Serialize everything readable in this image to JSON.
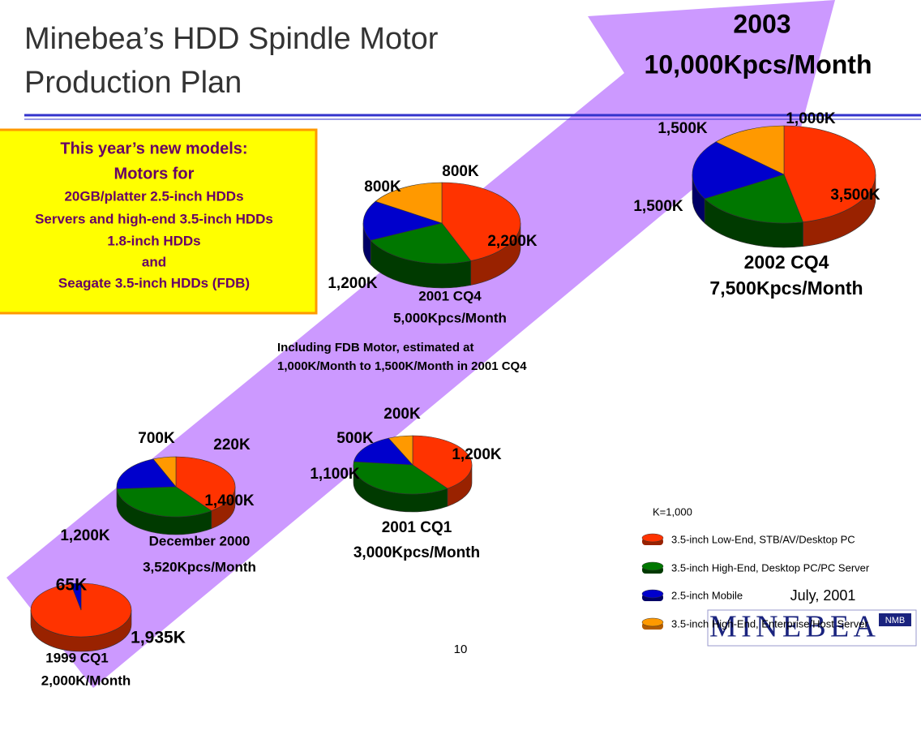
{
  "title_lines": [
    "Minebea’s HDD Spindle Motor",
    "Production Plan"
  ],
  "goal": {
    "year": "2003",
    "amount": "10,000Kpcs/Month"
  },
  "new_models": [
    "This year’s new models:",
    "Motors for",
    "20GB/platter 2.5-inch HDDs",
    "Servers and high-end 3.5-inch HDDs",
    "1.8-inch HDDs",
    "and",
    "Seagate 3.5-inch HDDs (FDB)"
  ],
  "note": [
    "Including FDB Motor, estimated at",
    "1,000K/Month to 1,500K/Month in 2001 CQ4"
  ],
  "unit_note": "K=1,000",
  "legend": [
    {
      "name": "3.5-inch Low-End, STB/AV/Desktop PC",
      "color": "#ff3300"
    },
    {
      "name": "3.5-inch High-End, Desktop PC/PC Server",
      "color": "#007700"
    },
    {
      "name": "2.5-inch Mobile",
      "color": "#0000cc"
    },
    {
      "name": "3.5-inch High-End, Enterprise/Host Server",
      "color": "#ff9900"
    }
  ],
  "date": "July, 2001",
  "logo": {
    "name": "MINEBEA",
    "mark": "NMB"
  },
  "page_number": "10",
  "chart_data": [
    {
      "type": "pie",
      "title": "1999 CQ1",
      "subtitle": "2,000K/Month",
      "values": [
        1935,
        null,
        65,
        null
      ],
      "value_labels": [
        "1,935K",
        null,
        "65K",
        null
      ]
    },
    {
      "type": "pie",
      "title": "December 2000",
      "subtitle": "3,520Kpcs/Month",
      "values": [
        1400,
        1200,
        700,
        220
      ],
      "value_labels": [
        "1,400K",
        "1,200K",
        "700K",
        "220K"
      ]
    },
    {
      "type": "pie",
      "title": "2001 CQ1",
      "subtitle": "3,000Kpcs/Month",
      "values": [
        1200,
        1100,
        500,
        200
      ],
      "value_labels": [
        "1,200K",
        "1,100K",
        "500K",
        "200K"
      ]
    },
    {
      "type": "pie",
      "title": "2001 CQ4",
      "subtitle": "5,000Kpcs/Month",
      "values": [
        2200,
        1200,
        800,
        800
      ],
      "value_labels": [
        "2,200K",
        "1,200K",
        "800K",
        "800K"
      ]
    },
    {
      "type": "pie",
      "title": "2002 CQ4",
      "subtitle": "7,500Kpcs/Month",
      "values": [
        3500,
        1500,
        1500,
        1000
      ],
      "value_labels": [
        "3,500K",
        "1,500K",
        "1,500K",
        "1,000K"
      ]
    }
  ]
}
